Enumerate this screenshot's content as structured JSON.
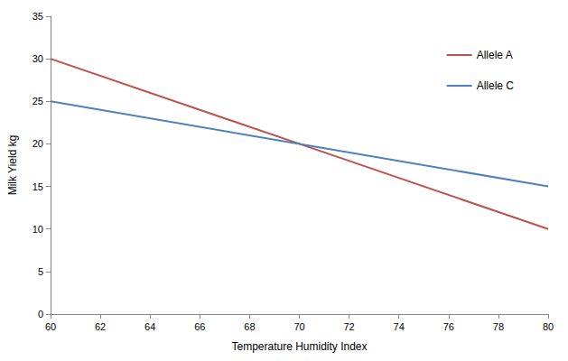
{
  "chart_data": {
    "type": "line",
    "x_label": "Temperature Humidity Index",
    "y_label": "Milk Yield kg",
    "x": [
      60,
      70,
      80
    ],
    "series": [
      {
        "name": "Allele A",
        "color": "#c0504d",
        "values": [
          30,
          20,
          10
        ]
      },
      {
        "name": "Allele C",
        "color": "#4f81bd",
        "values": [
          25,
          20,
          15
        ]
      }
    ],
    "xlim": [
      60,
      80
    ],
    "xticks": [
      60,
      62,
      64,
      66,
      68,
      70,
      72,
      74,
      76,
      78,
      80
    ],
    "ylim": [
      0,
      35
    ],
    "yticks": [
      0,
      5,
      10,
      15,
      20,
      25,
      30,
      35
    ],
    "grid": false,
    "legend": "top-right"
  }
}
